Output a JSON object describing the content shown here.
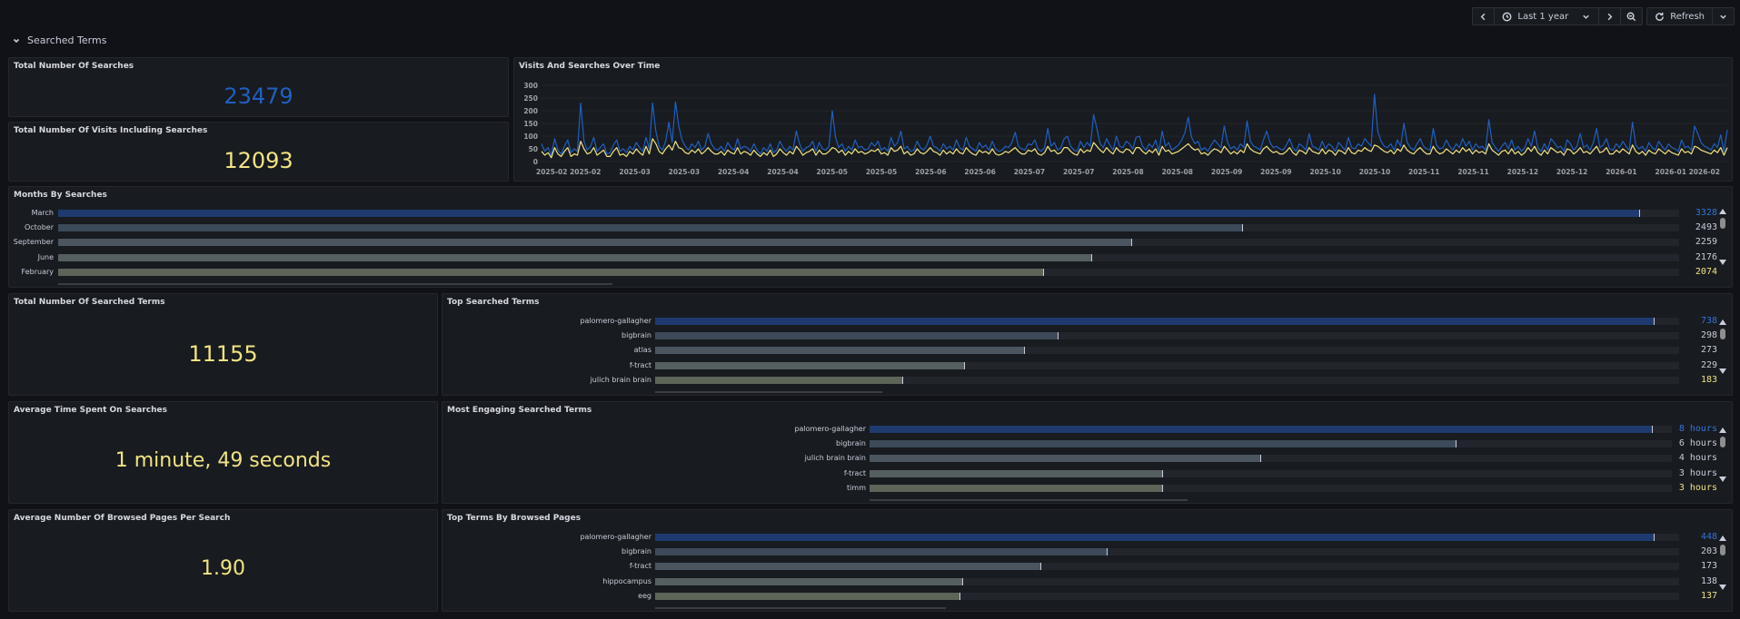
{
  "toolbar": {
    "time_range": "Last 1 year",
    "refresh_label": "Refresh"
  },
  "row": {
    "title": "Searched Terms"
  },
  "panels": {
    "total_searches": {
      "title": "Total Number Of Searches",
      "value": "23479",
      "color": "#1f60c4"
    },
    "total_visits": {
      "title": "Total Number Of Visits Including Searches",
      "value": "12093",
      "color": "#f2e483"
    },
    "visits_over_time": {
      "title": "Visits And Searches Over Time"
    },
    "months": {
      "title": "Months By Searches",
      "items": [
        {
          "label": "March",
          "value": 3328,
          "display": "3328"
        },
        {
          "label": "October",
          "value": 2493,
          "display": "2493"
        },
        {
          "label": "September",
          "value": 2259,
          "display": "2259"
        },
        {
          "label": "June",
          "value": 2176,
          "display": "2176"
        },
        {
          "label": "February",
          "value": 2074,
          "display": "2074"
        }
      ],
      "max": 3328
    },
    "total_terms": {
      "title": "Total Number Of Searched Terms",
      "value": "11155",
      "color": "#f2e483"
    },
    "top_terms": {
      "title": "Top Searched Terms",
      "items": [
        {
          "label": "palomero-gallagher",
          "value": 738,
          "display": "738"
        },
        {
          "label": "bigbrain",
          "value": 298,
          "display": "298"
        },
        {
          "label": "atlas",
          "value": 273,
          "display": "273"
        },
        {
          "label": "f-tract",
          "value": 229,
          "display": "229"
        },
        {
          "label": "julich brain brain",
          "value": 183,
          "display": "183"
        }
      ],
      "max": 738
    },
    "avg_time": {
      "title": "Average Time Spent On Searches",
      "value": "1 minute, 49 seconds",
      "color": "#f2e483"
    },
    "engaging_terms": {
      "title": "Most Engaging Searched Terms",
      "items": [
        {
          "label": "palomero-gallagher",
          "value": 8,
          "display": "8 hours"
        },
        {
          "label": "bigbrain",
          "value": 6,
          "display": "6 hours"
        },
        {
          "label": "julich brain brain",
          "value": 4,
          "display": "4 hours"
        },
        {
          "label": "f-tract",
          "value": 3,
          "display": "3 hours"
        },
        {
          "label": "timm",
          "value": 3,
          "display": "3 hours"
        }
      ],
      "max": 8
    },
    "avg_pages": {
      "title": "Average Number Of Browsed Pages Per Search",
      "value": "1.90",
      "color": "#f2e483"
    },
    "browsed_terms": {
      "title": "Top Terms By Browsed Pages",
      "items": [
        {
          "label": "palomero-gallagher",
          "value": 448,
          "display": "448"
        },
        {
          "label": "bigbrain",
          "value": 203,
          "display": "203"
        },
        {
          "label": "f-tract",
          "value": 173,
          "display": "173"
        },
        {
          "label": "hippocampus",
          "value": 138,
          "display": "138"
        },
        {
          "label": "eeg",
          "value": 137,
          "display": "137"
        }
      ],
      "max": 448
    }
  },
  "chart_data": {
    "type": "line",
    "title": "Visits And Searches Over Time",
    "ylim": [
      0,
      300
    ],
    "yticks": [
      "300",
      "250",
      "200",
      "150",
      "100",
      "50",
      "0"
    ],
    "xticks": [
      "2025-02",
      "2025-02",
      "2025-03",
      "2025-03",
      "2025-04",
      "2025-04",
      "2025-05",
      "2025-05",
      "2025-06",
      "2025-06",
      "2025-07",
      "2025-07",
      "2025-08",
      "2025-08",
      "2025-09",
      "2025-09",
      "2025-10",
      "2025-10",
      "2025-11",
      "2025-11",
      "2025-12",
      "2025-12",
      "2026-01",
      "2026-01",
      "2026-02"
    ],
    "series": [
      {
        "color": "#1f60c4",
        "values": [
          70,
          40,
          55,
          25,
          90,
          45,
          30,
          60,
          85,
          35,
          50,
          40,
          230,
          80,
          45,
          60,
          95,
          40,
          55,
          70,
          30,
          35,
          65,
          85,
          40,
          50,
          35,
          60,
          45,
          75,
          55,
          40,
          95,
          50,
          230,
          120,
          60,
          45,
          80,
          155,
          75,
          235,
          140,
          85,
          60,
          45,
          70,
          55,
          80,
          45,
          60,
          110,
          70,
          50,
          45,
          60,
          40,
          75,
          55,
          45,
          90,
          50,
          60,
          55,
          40,
          70,
          45,
          30,
          55,
          40,
          70,
          35,
          45,
          80,
          55,
          40,
          60,
          45,
          120,
          70,
          40,
          55,
          60,
          80,
          40,
          75,
          50,
          45,
          60,
          200,
          95,
          55,
          70,
          40,
          60,
          45,
          85,
          55,
          60,
          45,
          50,
          75,
          60,
          80,
          45,
          55,
          40,
          95,
          60,
          75,
          120,
          50,
          60,
          40,
          45,
          80,
          55,
          45,
          65,
          100,
          60,
          55,
          40,
          70,
          50,
          60,
          45,
          85,
          55,
          45,
          95,
          60,
          50,
          40,
          75,
          55,
          65,
          45,
          80,
          50,
          40,
          45,
          60,
          55,
          75,
          115,
          60,
          50,
          45,
          70,
          65,
          85,
          50,
          40,
          55,
          130,
          60,
          75,
          45,
          55,
          90,
          100,
          60,
          45,
          40,
          80,
          55,
          75,
          60,
          185,
          130,
          70,
          55,
          90,
          65,
          45,
          100,
          60,
          55,
          80,
          70,
          50,
          95,
          100,
          60,
          45,
          70,
          55,
          85,
          40,
          120,
          60,
          75,
          45,
          55,
          65,
          85,
          115,
          175,
          95,
          70,
          80,
          45,
          55,
          40,
          65,
          85,
          70,
          55,
          140,
          75,
          50,
          60,
          45,
          70,
          55,
          160,
          80,
          60,
          55,
          45,
          85,
          120,
          75,
          55,
          60,
          50,
          45,
          65,
          90,
          55,
          40,
          70,
          60,
          45,
          110,
          60,
          55,
          45,
          80,
          50,
          70,
          60,
          40,
          75,
          60,
          45,
          95,
          55,
          50,
          70,
          60,
          90,
          75,
          60,
          265,
          120,
          80,
          60,
          55,
          70,
          45,
          85,
          60,
          150,
          75,
          55,
          45,
          70,
          90,
          60,
          50,
          45,
          130,
          65,
          50,
          55,
          85,
          60,
          45,
          70,
          55,
          90,
          60,
          80,
          45,
          70,
          55,
          60,
          45,
          165,
          75,
          55,
          40,
          60,
          75,
          50,
          85,
          45,
          60,
          40,
          55,
          90,
          60,
          120,
          55,
          40,
          70,
          45,
          90,
          75,
          55,
          60,
          40,
          85,
          70,
          45,
          60,
          110,
          55,
          65,
          45,
          75,
          130,
          55,
          65,
          90,
          50,
          45,
          70,
          55,
          80,
          60,
          45,
          155,
          65,
          50,
          60,
          40,
          75,
          55,
          45,
          80,
          60,
          45,
          70,
          55,
          50,
          40,
          85,
          55,
          60,
          45,
          140,
          110,
          75,
          60,
          55,
          45,
          70,
          55,
          105,
          40,
          125
        ]
      },
      {
        "color": "#f2e483",
        "values": [
          40,
          25,
          35,
          15,
          55,
          30,
          20,
          40,
          55,
          20,
          30,
          25,
          80,
          50,
          30,
          35,
          55,
          25,
          35,
          45,
          20,
          20,
          40,
          55,
          25,
          30,
          20,
          40,
          30,
          50,
          35,
          25,
          60,
          30,
          90,
          70,
          40,
          30,
          50,
          65,
          45,
          80,
          55,
          50,
          35,
          30,
          45,
          35,
          50,
          30,
          40,
          55,
          40,
          30,
          30,
          40,
          25,
          45,
          35,
          30,
          55,
          30,
          40,
          35,
          25,
          45,
          30,
          20,
          35,
          25,
          45,
          20,
          30,
          50,
          35,
          25,
          40,
          30,
          60,
          45,
          25,
          35,
          40,
          50,
          25,
          45,
          30,
          30,
          40,
          55,
          50,
          35,
          45,
          25,
          40,
          30,
          50,
          35,
          40,
          30,
          35,
          45,
          40,
          50,
          30,
          35,
          25,
          55,
          40,
          45,
          60,
          30,
          40,
          25,
          30,
          50,
          35,
          30,
          40,
          55,
          40,
          35,
          25,
          45,
          30,
          40,
          30,
          50,
          35,
          30,
          55,
          40,
          30,
          25,
          45,
          35,
          40,
          30,
          50,
          30,
          25,
          30,
          40,
          35,
          45,
          55,
          40,
          30,
          30,
          45,
          40,
          50,
          30,
          25,
          35,
          60,
          40,
          45,
          30,
          35,
          55,
          55,
          40,
          30,
          25,
          50,
          35,
          45,
          40,
          75,
          60,
          45,
          35,
          55,
          40,
          30,
          55,
          40,
          35,
          50,
          45,
          30,
          55,
          55,
          40,
          30,
          45,
          35,
          50,
          25,
          60,
          40,
          45,
          30,
          35,
          40,
          50,
          60,
          70,
          55,
          45,
          50,
          30,
          35,
          25,
          40,
          50,
          45,
          35,
          60,
          45,
          30,
          40,
          30,
          45,
          35,
          70,
          50,
          40,
          35,
          30,
          50,
          60,
          45,
          35,
          40,
          30,
          30,
          40,
          55,
          35,
          25,
          45,
          40,
          30,
          55,
          40,
          35,
          30,
          50,
          30,
          45,
          40,
          25,
          45,
          40,
          30,
          55,
          35,
          30,
          45,
          40,
          55,
          45,
          40,
          65,
          60,
          50,
          40,
          35,
          45,
          30,
          50,
          40,
          65,
          45,
          35,
          30,
          45,
          55,
          40,
          30,
          30,
          60,
          40,
          30,
          35,
          50,
          40,
          30,
          45,
          35,
          55,
          40,
          50,
          30,
          45,
          35,
          40,
          30,
          70,
          45,
          35,
          25,
          40,
          45,
          30,
          50,
          30,
          40,
          25,
          35,
          55,
          40,
          60,
          35,
          25,
          45,
          30,
          55,
          45,
          35,
          40,
          25,
          50,
          45,
          30,
          40,
          55,
          35,
          40,
          30,
          45,
          60,
          35,
          40,
          55,
          30,
          30,
          45,
          35,
          50,
          40,
          30,
          65,
          40,
          30,
          40,
          25,
          45,
          35,
          30,
          50,
          40,
          30,
          45,
          35,
          30,
          25,
          50,
          35,
          40,
          30,
          60,
          55,
          45,
          40,
          35,
          30,
          45,
          35,
          55,
          25,
          55
        ]
      }
    ]
  }
}
